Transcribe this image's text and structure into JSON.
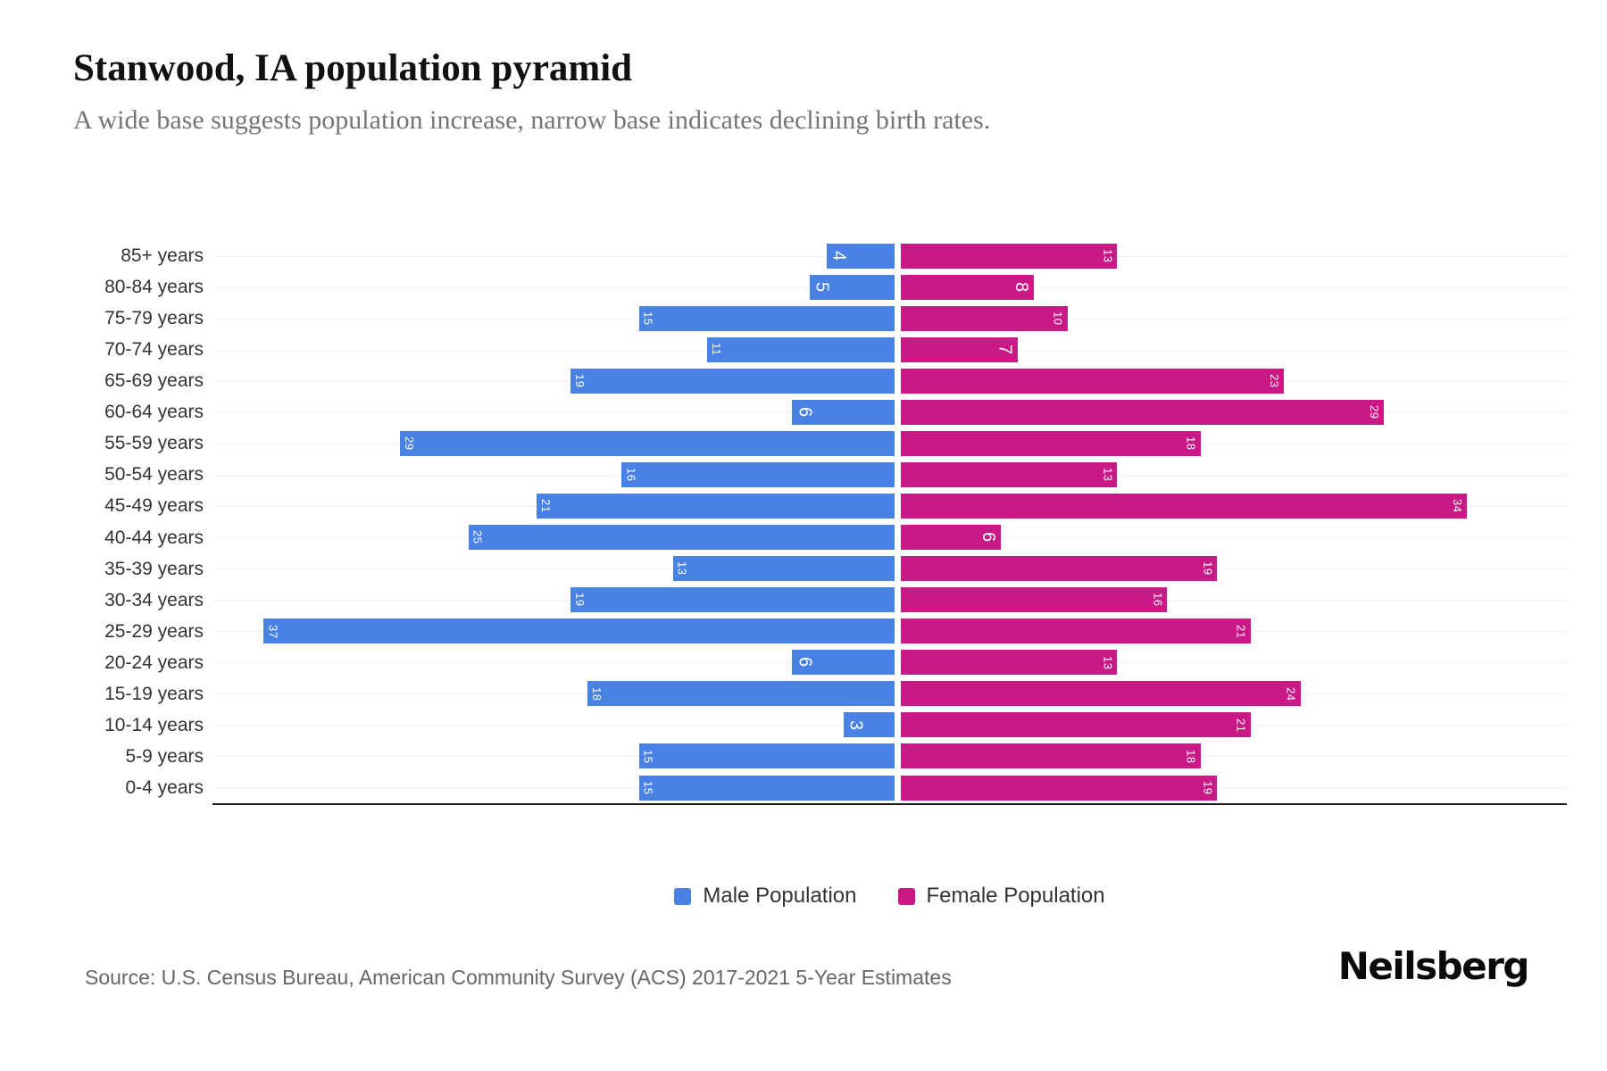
{
  "header": {
    "title": "Stanwood, IA population pyramid",
    "subtitle": "A wide base suggests population increase, narrow base indicates declining birth rates."
  },
  "legend": {
    "items": [
      {
        "label": "Male Population",
        "color": "#4A82E4"
      },
      {
        "label": "Female Population",
        "color": "#C91986"
      }
    ]
  },
  "footer": {
    "source": "Source: U.S. Census Bureau, American Community Survey (ACS) 2017-2021 5-Year Estimates",
    "brand": "Neilsberg"
  },
  "colors": {
    "male": "#4A82E4",
    "female": "#C91986",
    "gridline": "#f0f0f0",
    "axis": "#1c1c1c",
    "value_label": "#ffffff"
  },
  "chart_data": {
    "type": "bar",
    "variant": "population-pyramid",
    "orientation": "horizontal",
    "title": "Stanwood, IA population pyramid",
    "categories": [
      "85+ years",
      "80-84 years",
      "75-79 years",
      "70-74 years",
      "65-69 years",
      "60-64 years",
      "55-59 years",
      "50-54 years",
      "45-49 years",
      "40-44 years",
      "35-39 years",
      "30-34 years",
      "25-29 years",
      "20-24 years",
      "15-19 years",
      "10-14 years",
      "5-9 years",
      "0-4 years"
    ],
    "series": [
      {
        "name": "Male Population",
        "side": "left",
        "color": "#4A82E4",
        "values": [
          4,
          5,
          15,
          11,
          19,
          6,
          29,
          16,
          21,
          25,
          13,
          19,
          37,
          6,
          18,
          3,
          15,
          15
        ]
      },
      {
        "name": "Female Population",
        "side": "right",
        "color": "#C91986",
        "values": [
          13,
          8,
          10,
          7,
          23,
          29,
          18,
          13,
          34,
          6,
          19,
          16,
          21,
          13,
          24,
          21,
          18,
          19
        ]
      }
    ],
    "value_axis_max_per_side": 40,
    "grid": true,
    "legend_position": "bottom",
    "bar_value_labels": "inside-outer-end-rotated-90deg"
  }
}
